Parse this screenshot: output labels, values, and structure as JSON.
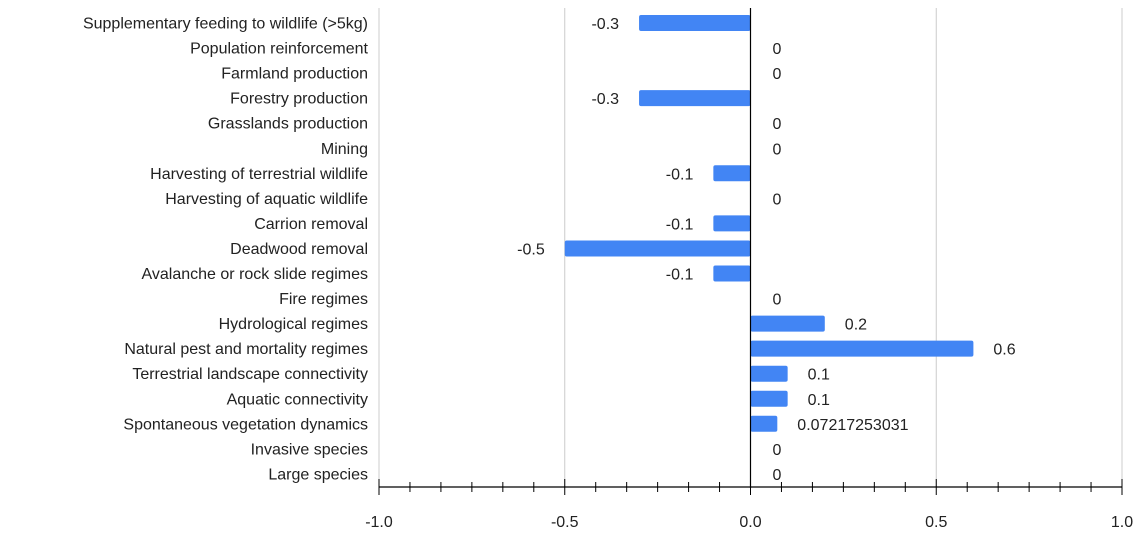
{
  "chart_data": {
    "type": "bar",
    "orientation": "horizontal",
    "categories": [
      "Supplementary feeding to wildlife (>5kg)",
      "Population reinforcement",
      "Farmland production",
      "Forestry production",
      "Grasslands production",
      "Mining",
      "Harvesting of terrestrial wildlife",
      "Harvesting of aquatic wildlife",
      "Carrion removal",
      "Deadwood removal",
      "Avalanche or rock slide regimes",
      "Fire regimes",
      "Hydrological regimes",
      "Natural pest and mortality regimes",
      "Terrestrial landscape connectivity",
      "Aquatic connectivity",
      "Spontaneous vegetation dynamics",
      "Invasive species",
      "Large species"
    ],
    "values": [
      -0.3,
      0,
      0,
      -0.3,
      0,
      0,
      -0.1,
      0,
      -0.1,
      -0.5,
      -0.1,
      0,
      0.2,
      0.6,
      0.1,
      0.1,
      0.07217253031,
      0,
      0
    ],
    "value_labels": [
      "-0.3",
      "0",
      "0",
      "-0.3",
      "0",
      "0",
      "-0.1",
      "0",
      "-0.1",
      "-0.5",
      "-0.1",
      "0",
      "0.2",
      "0.6",
      "0.1",
      "0.1",
      "0.07217253031",
      "0",
      "0"
    ],
    "x_ticks": [
      "-1.0",
      "-0.5",
      "0.0",
      "0.5",
      "1.0"
    ],
    "xlim": [
      -1.0,
      1.0
    ],
    "title": "",
    "xlabel": "",
    "ylabel": "",
    "grid": true,
    "legend": "none",
    "bar_color": "#4285f4"
  }
}
